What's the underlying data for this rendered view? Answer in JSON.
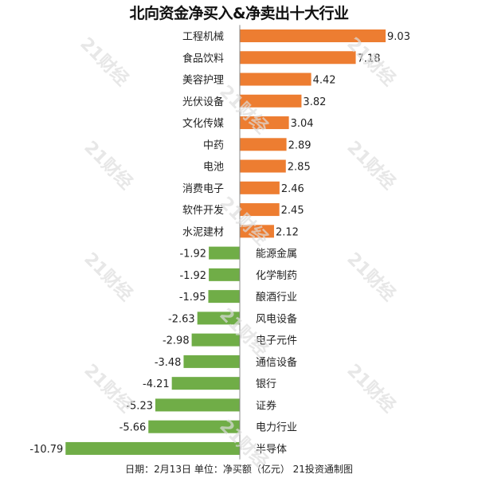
{
  "chart_data": {
    "type": "bar",
    "orientation": "horizontal",
    "title": "北向资金净买入&净卖出十大行业",
    "categories": [
      "工程机械",
      "食品饮料",
      "美容护理",
      "光伏设备",
      "文化传媒",
      "中药",
      "电池",
      "消费电子",
      "软件开发",
      "水泥建材",
      "能源金属",
      "化学制药",
      "酿酒行业",
      "风电设备",
      "电子元件",
      "通信设备",
      "银行",
      "证券",
      "电力行业",
      "半导体"
    ],
    "values": [
      9.03,
      7.18,
      4.42,
      3.82,
      3.04,
      2.89,
      2.85,
      2.46,
      2.45,
      2.12,
      -1.92,
      -1.92,
      -1.95,
      -2.63,
      -2.98,
      -3.48,
      -4.21,
      -5.23,
      -5.66,
      -10.79
    ],
    "value_labels": [
      "9.03",
      "7.18",
      "4.42",
      "3.82",
      "3.04",
      "2.89",
      "2.85",
      "2.46",
      "2.45",
      "2.12",
      "-1.92",
      "-1.92",
      "-1.95",
      "-2.63",
      "-2.98",
      "-3.48",
      "-4.21",
      "-5.23",
      "-5.66",
      "-10.79"
    ],
    "colors": {
      "positive": "#ED7D31",
      "negative": "#70AD47",
      "axis": "#888888"
    },
    "grid": false,
    "legend": "none"
  },
  "footer": "日期：2月13日 单位：净买额（亿元） 21投资通制图",
  "watermark": "21财经"
}
